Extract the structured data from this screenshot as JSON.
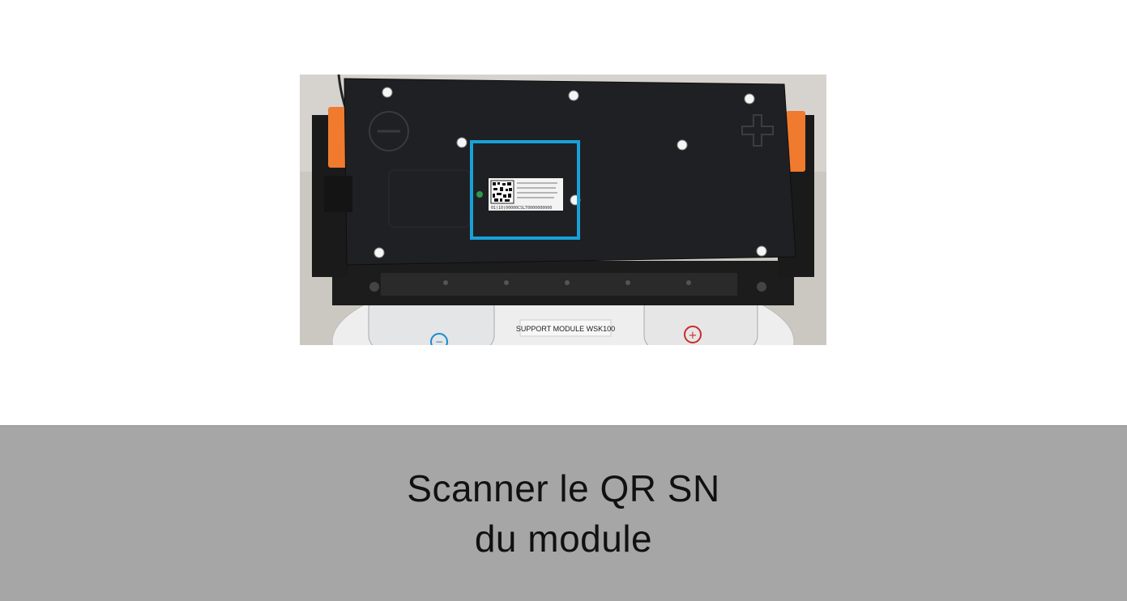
{
  "photo": {
    "label_text": "SUPPORT MODULE WSK100",
    "sticker_serial": "01(10)00000CSLT0000000000",
    "minus_symbol": "−",
    "plus_symbol": "+",
    "highlight_color": "#1aa0d8",
    "clip_color": "#f07a2e"
  },
  "caption": {
    "line1": "Scanner le QR SN",
    "line2": "du module"
  }
}
